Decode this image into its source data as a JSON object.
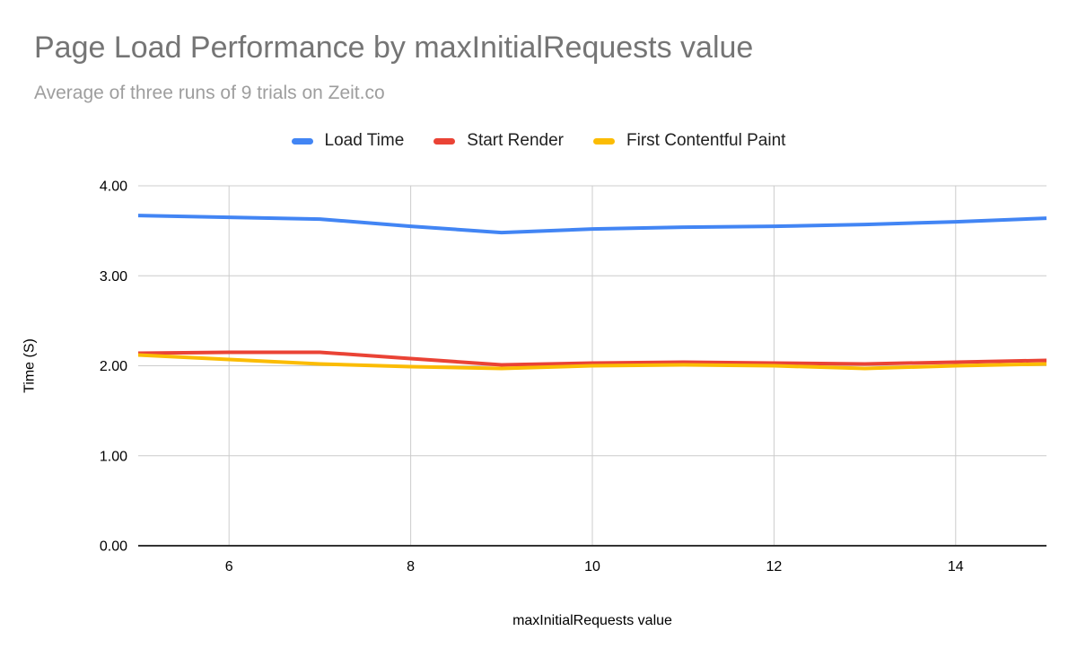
{
  "chart_data": {
    "type": "line",
    "title": "Page Load Performance by maxInitialRequests value",
    "subtitle": "Average of three runs of 9 trials on Zeit.co",
    "xlabel": "maxInitialRequests value",
    "ylabel": "Time (S)",
    "x": [
      5,
      6,
      7,
      8,
      9,
      10,
      11,
      12,
      13,
      14,
      15
    ],
    "x_tick_labels": [
      "6",
      "8",
      "10",
      "12",
      "14"
    ],
    "x_tick_values": [
      6,
      8,
      10,
      12,
      14
    ],
    "y_tick_labels": [
      "0.00",
      "1.00",
      "2.00",
      "3.00",
      "4.00"
    ],
    "y_tick_values": [
      0,
      1,
      2,
      3,
      4
    ],
    "xlim": [
      5,
      15
    ],
    "ylim": [
      0,
      4
    ],
    "grid": true,
    "legend_position": "top",
    "series": [
      {
        "name": "Load Time",
        "color": "#4285f4",
        "values": [
          3.67,
          3.65,
          3.63,
          3.55,
          3.48,
          3.52,
          3.54,
          3.55,
          3.57,
          3.6,
          3.64
        ]
      },
      {
        "name": "Start Render",
        "color": "#ea4335",
        "values": [
          2.14,
          2.15,
          2.15,
          2.08,
          2.01,
          2.03,
          2.04,
          2.03,
          2.02,
          2.04,
          2.06
        ]
      },
      {
        "name": "First Contentful Paint",
        "color": "#fbbc04",
        "values": [
          2.12,
          2.07,
          2.02,
          1.99,
          1.97,
          2.0,
          2.01,
          2.0,
          1.97,
          2.0,
          2.02
        ]
      }
    ],
    "style": {
      "background": "#ffffff",
      "title_color": "#757575",
      "subtitle_color": "#9e9e9e",
      "legend_text_color": "#212121",
      "tick_text_color": "#000000",
      "axis_title_color": "#000000",
      "gridline_color": "#cccccc",
      "axis_line_color": "#333333"
    }
  }
}
